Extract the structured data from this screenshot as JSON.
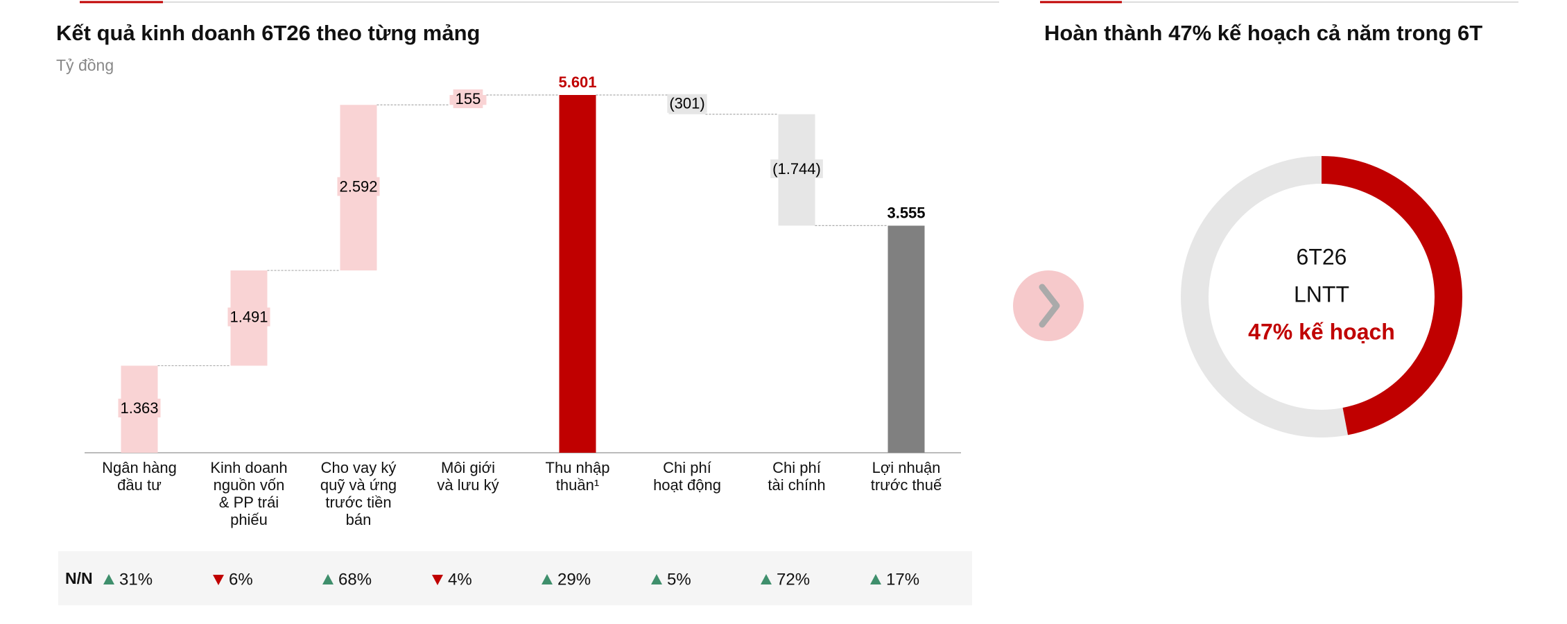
{
  "chart_data": [
    {
      "type": "waterfall",
      "title": "Kết quả kinh doanh 6T26 theo từng mảng",
      "subtitle": "Tỷ đồng",
      "categories": [
        "Ngân hàng\nđầu tư",
        "Kinh doanh\nnguồn vốn\n& PP trái\nphiếu",
        "Cho vay ký\nquỹ và ứng\ntrước tiền\nbán",
        "Môi giới\nvà lưu ký",
        "Thu nhập\nthuần¹",
        "Chi phí\nhoạt động",
        "Chi phí\ntài chính",
        "Lợi nhuận\ntrước thuế"
      ],
      "values": [
        1363,
        1491,
        2592,
        155,
        5601,
        -301,
        -1744,
        3555
      ],
      "value_labels": [
        "1.363",
        "1.491",
        "2.592",
        "155",
        "5.601",
        "(301)",
        "(1.744)",
        "3.555"
      ],
      "measure": [
        "relative",
        "relative",
        "relative",
        "relative",
        "total",
        "relative",
        "relative",
        "total"
      ],
      "colors": [
        "#f9d3d4",
        "#f9d3d4",
        "#f9d3d4",
        "#f9d3d4",
        "#c00000",
        "#e6e6e6",
        "#e6e6e6",
        "#808080"
      ],
      "value_label_colors": [
        "#000000",
        "#000000",
        "#000000",
        "#000000",
        "#c00000",
        "#000000",
        "#000000",
        "#000000"
      ],
      "growth": {
        "label": "N/N",
        "values": [
          31,
          -6,
          68,
          -4,
          29,
          5,
          72,
          17
        ],
        "value_labels": [
          "31%",
          "6%",
          "68%",
          "4%",
          "29%",
          "5%",
          "72%",
          "17%"
        ],
        "up_color": "#3f8f6c",
        "down_color": "#c00000"
      }
    },
    {
      "type": "donut",
      "title": "Hoàn thành 47% kế hoạch cả năm trong 6T",
      "center_text": [
        "6T26",
        "LNTT"
      ],
      "value": 47,
      "value_label": "47% kế hoạch",
      "color": "#c00000",
      "track_color": "#e6e6e6"
    }
  ]
}
